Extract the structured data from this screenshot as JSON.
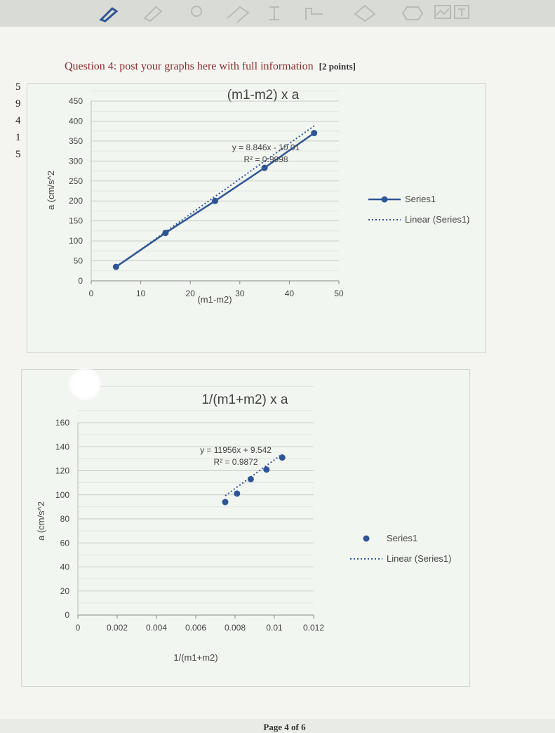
{
  "toolbar": {
    "icons": [
      "pen-icon",
      "highlighter-icon",
      "lasso-icon",
      "eraser-icon",
      "text-cursor-icon",
      "pointer-icon",
      "shape-icon",
      "hexagon-icon",
      "image-icon",
      "text-box-icon"
    ]
  },
  "margin_digits": [
    "5",
    "9",
    "4",
    "1",
    "5"
  ],
  "question": {
    "text": "Question 4: post your graphs here with full information",
    "points": "[2 points]"
  },
  "footer": {
    "page_label": "Page 4 of 6"
  },
  "chart_data": [
    {
      "type": "line",
      "title": "(m1-m2) x a",
      "xlabel": "(m1-m2)",
      "ylabel": "a (cm/s^2",
      "xlim": [
        0,
        50
      ],
      "ylim": [
        0,
        450
      ],
      "x_ticks": [
        "0",
        "10",
        "20",
        "30",
        "40",
        "50"
      ],
      "y_ticks": [
        "0",
        "50",
        "100",
        "150",
        "200",
        "250",
        "300",
        "350",
        "400",
        "450"
      ],
      "grid": true,
      "legend": "right",
      "series": [
        {
          "name": "Series1",
          "x": [
            5,
            15,
            25,
            35,
            45
          ],
          "y": [
            35,
            120,
            200,
            283,
            370
          ],
          "color": "#2f5597"
        }
      ],
      "trendline": {
        "name": "Linear (Series1)",
        "slope": 8.846,
        "intercept": -10.01,
        "equation": "y = 8.846x - 10.01",
        "r2": "R² = 0.9998"
      }
    },
    {
      "type": "scatter",
      "title": "1/(m1+m2) x a",
      "xlabel": "1/(m1+m2)",
      "ylabel": "a (cm/s^2",
      "xlim": [
        0,
        0.012
      ],
      "ylim": [
        0,
        160
      ],
      "x_ticks": [
        "0",
        "0.002",
        "0.004",
        "0.006",
        "0.008",
        "0.01",
        "0.012"
      ],
      "y_ticks": [
        "0",
        "20",
        "40",
        "60",
        "80",
        "100",
        "120",
        "140",
        "160"
      ],
      "grid": true,
      "legend": "right",
      "series": [
        {
          "name": "Series1",
          "x": [
            0.0075,
            0.0081,
            0.0088,
            0.0096,
            0.0104
          ],
          "y": [
            94,
            101,
            113,
            121,
            131
          ],
          "color": "#2f5597"
        }
      ],
      "trendline": {
        "name": "Linear (Series1)",
        "slope": 11956,
        "intercept": 9.542,
        "equation": "y = 11956x + 9.542",
        "r2": "R² = 0.9872"
      }
    }
  ]
}
